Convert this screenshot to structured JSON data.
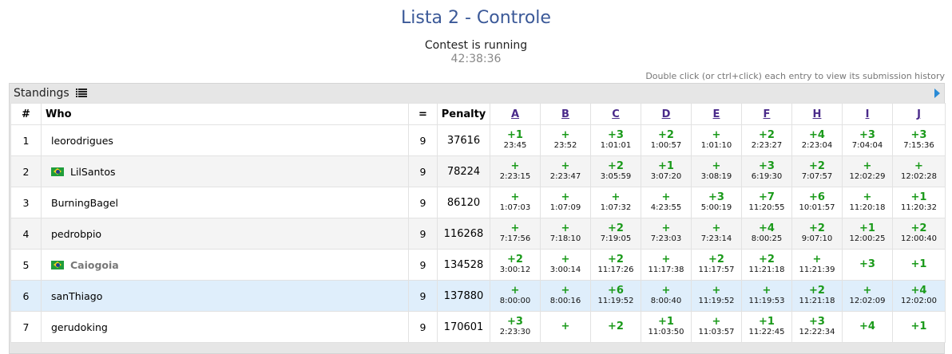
{
  "header": {
    "title": "Lista 2 - Controle",
    "status": "Contest is running",
    "timer": "42:38:36",
    "hint": "Double click (or ctrl+click) each entry to view its submission history"
  },
  "panel": {
    "title": "Standings"
  },
  "icons": {
    "standings": "list-icon",
    "expand": "arrow-right-icon",
    "flag": "brazil-flag-icon"
  },
  "colors": {
    "accepted": "#1a9a1a",
    "title": "#3b5998",
    "highlight_row": "#dfeefb"
  },
  "columns": {
    "rank": "#",
    "who": "Who",
    "solved": "=",
    "penalty": "Penalty"
  },
  "problems": [
    "A",
    "B",
    "C",
    "D",
    "E",
    "F",
    "H",
    "I",
    "J"
  ],
  "rows": [
    {
      "rank": "1",
      "who": "leorodrigues",
      "flag": false,
      "muted": false,
      "highlight": false,
      "solved": "9",
      "penalty": "37616",
      "cells": [
        {
          "a": "+1",
          "t": "23:45"
        },
        {
          "a": "+",
          "t": "23:52"
        },
        {
          "a": "+3",
          "t": "1:01:01"
        },
        {
          "a": "+2",
          "t": "1:00:57"
        },
        {
          "a": "+",
          "t": "1:01:10"
        },
        {
          "a": "+2",
          "t": "2:23:27"
        },
        {
          "a": "+4",
          "t": "2:23:04"
        },
        {
          "a": "+3",
          "t": "7:04:04"
        },
        {
          "a": "+3",
          "t": "7:15:36"
        }
      ]
    },
    {
      "rank": "2",
      "who": "LilSantos",
      "flag": true,
      "muted": false,
      "highlight": false,
      "solved": "9",
      "penalty": "78224",
      "cells": [
        {
          "a": "+",
          "t": "2:23:15"
        },
        {
          "a": "+",
          "t": "2:23:47"
        },
        {
          "a": "+2",
          "t": "3:05:59"
        },
        {
          "a": "+1",
          "t": "3:07:20"
        },
        {
          "a": "+",
          "t": "3:08:19"
        },
        {
          "a": "+3",
          "t": "6:19:30"
        },
        {
          "a": "+2",
          "t": "7:07:57"
        },
        {
          "a": "+",
          "t": "12:02:29"
        },
        {
          "a": "+",
          "t": "12:02:28"
        }
      ]
    },
    {
      "rank": "3",
      "who": "BurningBagel",
      "flag": false,
      "muted": false,
      "highlight": false,
      "solved": "9",
      "penalty": "86120",
      "cells": [
        {
          "a": "+",
          "t": "1:07:03"
        },
        {
          "a": "+",
          "t": "1:07:09"
        },
        {
          "a": "+",
          "t": "1:07:32"
        },
        {
          "a": "+",
          "t": "4:23:55"
        },
        {
          "a": "+3",
          "t": "5:00:19"
        },
        {
          "a": "+7",
          "t": "11:20:55"
        },
        {
          "a": "+6",
          "t": "10:01:57"
        },
        {
          "a": "+",
          "t": "11:20:18"
        },
        {
          "a": "+1",
          "t": "11:20:32"
        }
      ]
    },
    {
      "rank": "4",
      "who": "pedrobpio",
      "flag": false,
      "muted": false,
      "highlight": false,
      "solved": "9",
      "penalty": "116268",
      "cells": [
        {
          "a": "+",
          "t": "7:17:56"
        },
        {
          "a": "+",
          "t": "7:18:10"
        },
        {
          "a": "+2",
          "t": "7:19:05"
        },
        {
          "a": "+",
          "t": "7:23:03"
        },
        {
          "a": "+",
          "t": "7:23:14"
        },
        {
          "a": "+4",
          "t": "8:00:25"
        },
        {
          "a": "+2",
          "t": "9:07:10"
        },
        {
          "a": "+1",
          "t": "12:00:25"
        },
        {
          "a": "+2",
          "t": "12:00:40"
        }
      ]
    },
    {
      "rank": "5",
      "who": "Caiogoia",
      "flag": true,
      "muted": true,
      "highlight": false,
      "solved": "9",
      "penalty": "134528",
      "cells": [
        {
          "a": "+2",
          "t": "3:00:12"
        },
        {
          "a": "+",
          "t": "3:00:14"
        },
        {
          "a": "+2",
          "t": "11:17:26"
        },
        {
          "a": "+",
          "t": "11:17:38"
        },
        {
          "a": "+2",
          "t": "11:17:57"
        },
        {
          "a": "+2",
          "t": "11:21:18"
        },
        {
          "a": "+",
          "t": "11:21:39"
        },
        {
          "a": "+3",
          "t": ""
        },
        {
          "a": "+1",
          "t": ""
        }
      ]
    },
    {
      "rank": "6",
      "who": "sanThiago",
      "flag": false,
      "muted": false,
      "highlight": true,
      "solved": "9",
      "penalty": "137880",
      "cells": [
        {
          "a": "+",
          "t": "8:00:00"
        },
        {
          "a": "+",
          "t": "8:00:16"
        },
        {
          "a": "+6",
          "t": "11:19:52"
        },
        {
          "a": "+",
          "t": "8:00:40"
        },
        {
          "a": "+",
          "t": "11:19:52"
        },
        {
          "a": "+",
          "t": "11:19:53"
        },
        {
          "a": "+2",
          "t": "11:21:18"
        },
        {
          "a": "+",
          "t": "12:02:09"
        },
        {
          "a": "+4",
          "t": "12:02:00"
        }
      ]
    },
    {
      "rank": "7",
      "who": "gerudoking",
      "flag": false,
      "muted": false,
      "highlight": false,
      "solved": "9",
      "penalty": "170601",
      "cells": [
        {
          "a": "+3",
          "t": "2:23:30"
        },
        {
          "a": "+",
          "t": ""
        },
        {
          "a": "+2",
          "t": ""
        },
        {
          "a": "+1",
          "t": "11:03:50"
        },
        {
          "a": "+",
          "t": "11:03:57"
        },
        {
          "a": "+1",
          "t": "11:22:45"
        },
        {
          "a": "+3",
          "t": "12:22:34"
        },
        {
          "a": "+4",
          "t": ""
        },
        {
          "a": "+1",
          "t": ""
        }
      ]
    }
  ]
}
